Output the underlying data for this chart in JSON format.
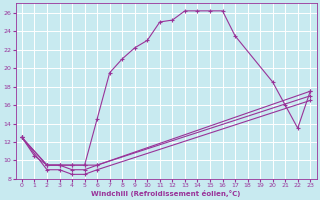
{
  "xlabel": "Windchill (Refroidissement éolien,°C)",
  "background_color": "#c8eaf0",
  "grid_color": "#ffffff",
  "line_color": "#993399",
  "xlim": [
    -0.5,
    23.5
  ],
  "ylim": [
    8,
    27
  ],
  "xticks": [
    0,
    1,
    2,
    3,
    4,
    5,
    6,
    7,
    8,
    9,
    10,
    11,
    12,
    13,
    14,
    15,
    16,
    17,
    18,
    19,
    20,
    21,
    22,
    23
  ],
  "yticks": [
    8,
    10,
    12,
    14,
    16,
    18,
    20,
    22,
    24,
    26
  ],
  "line1_x": [
    0,
    1,
    2,
    3,
    4,
    5,
    6,
    7,
    8,
    9,
    10,
    11,
    12,
    13,
    14,
    15,
    16,
    17,
    20,
    21,
    22,
    23
  ],
  "line1_y": [
    12.5,
    10.5,
    9.5,
    9.5,
    9.5,
    9.5,
    14.5,
    19.5,
    21,
    22.2,
    23,
    25,
    25.2,
    26.2,
    26.2,
    26.2,
    26.2,
    23.5,
    18.5,
    16,
    13.5,
    17.5
  ],
  "line2_x": [
    0,
    2,
    3,
    4,
    5,
    6,
    23
  ],
  "line2_y": [
    12.5,
    9.5,
    9.5,
    9.5,
    9.5,
    9.5,
    17.5
  ],
  "line3_x": [
    0,
    2,
    3,
    4,
    5,
    6,
    23
  ],
  "line3_y": [
    12.5,
    9.5,
    9.5,
    9.0,
    9.0,
    9.5,
    17.0
  ],
  "line4_x": [
    0,
    2,
    3,
    4,
    5,
    6,
    23
  ],
  "line4_y": [
    12.5,
    9.0,
    9.0,
    8.5,
    8.5,
    9.0,
    16.5
  ]
}
